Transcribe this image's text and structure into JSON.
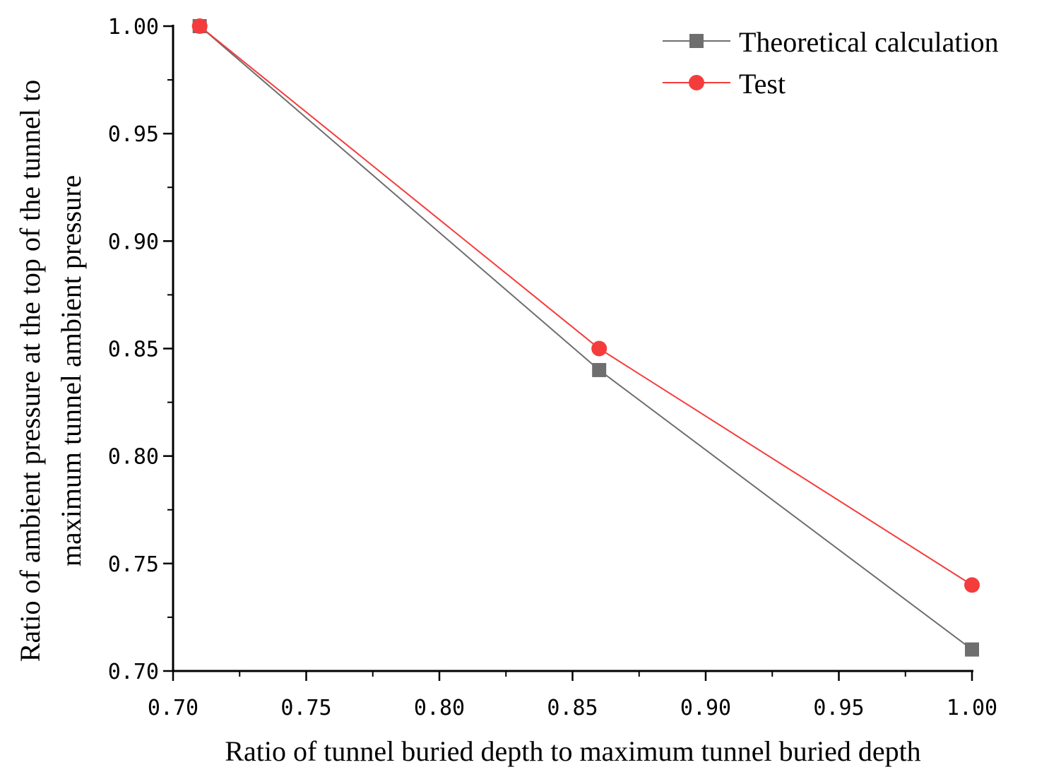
{
  "chart_data": {
    "type": "line",
    "xlabel": "Ratio of tunnel buried depth to maximum tunnel buried depth",
    "ylabel_lines": [
      "Ratio of ambient pressure at the top of the tunnel to",
      "maximum tunnel ambient pressure"
    ],
    "xlim": [
      0.7,
      1.0
    ],
    "ylim": [
      0.7,
      1.0
    ],
    "x_ticks": [
      "0.70",
      "0.75",
      "0.80",
      "0.85",
      "0.90",
      "0.95",
      "1.00"
    ],
    "y_ticks": [
      "0.70",
      "0.75",
      "0.80",
      "0.85",
      "0.90",
      "0.95",
      "1.00"
    ],
    "legend_position": "top-right",
    "series": [
      {
        "name": "Theoretical calculation",
        "marker": "square",
        "color": "#6e6e6e",
        "x": [
          0.71,
          0.86,
          1.0
        ],
        "y": [
          1.0,
          0.84,
          0.71
        ]
      },
      {
        "name": "Test",
        "marker": "circle",
        "color": "#f53c3c",
        "x": [
          0.71,
          0.86,
          1.0
        ],
        "y": [
          1.0,
          0.85,
          0.74
        ]
      }
    ]
  }
}
